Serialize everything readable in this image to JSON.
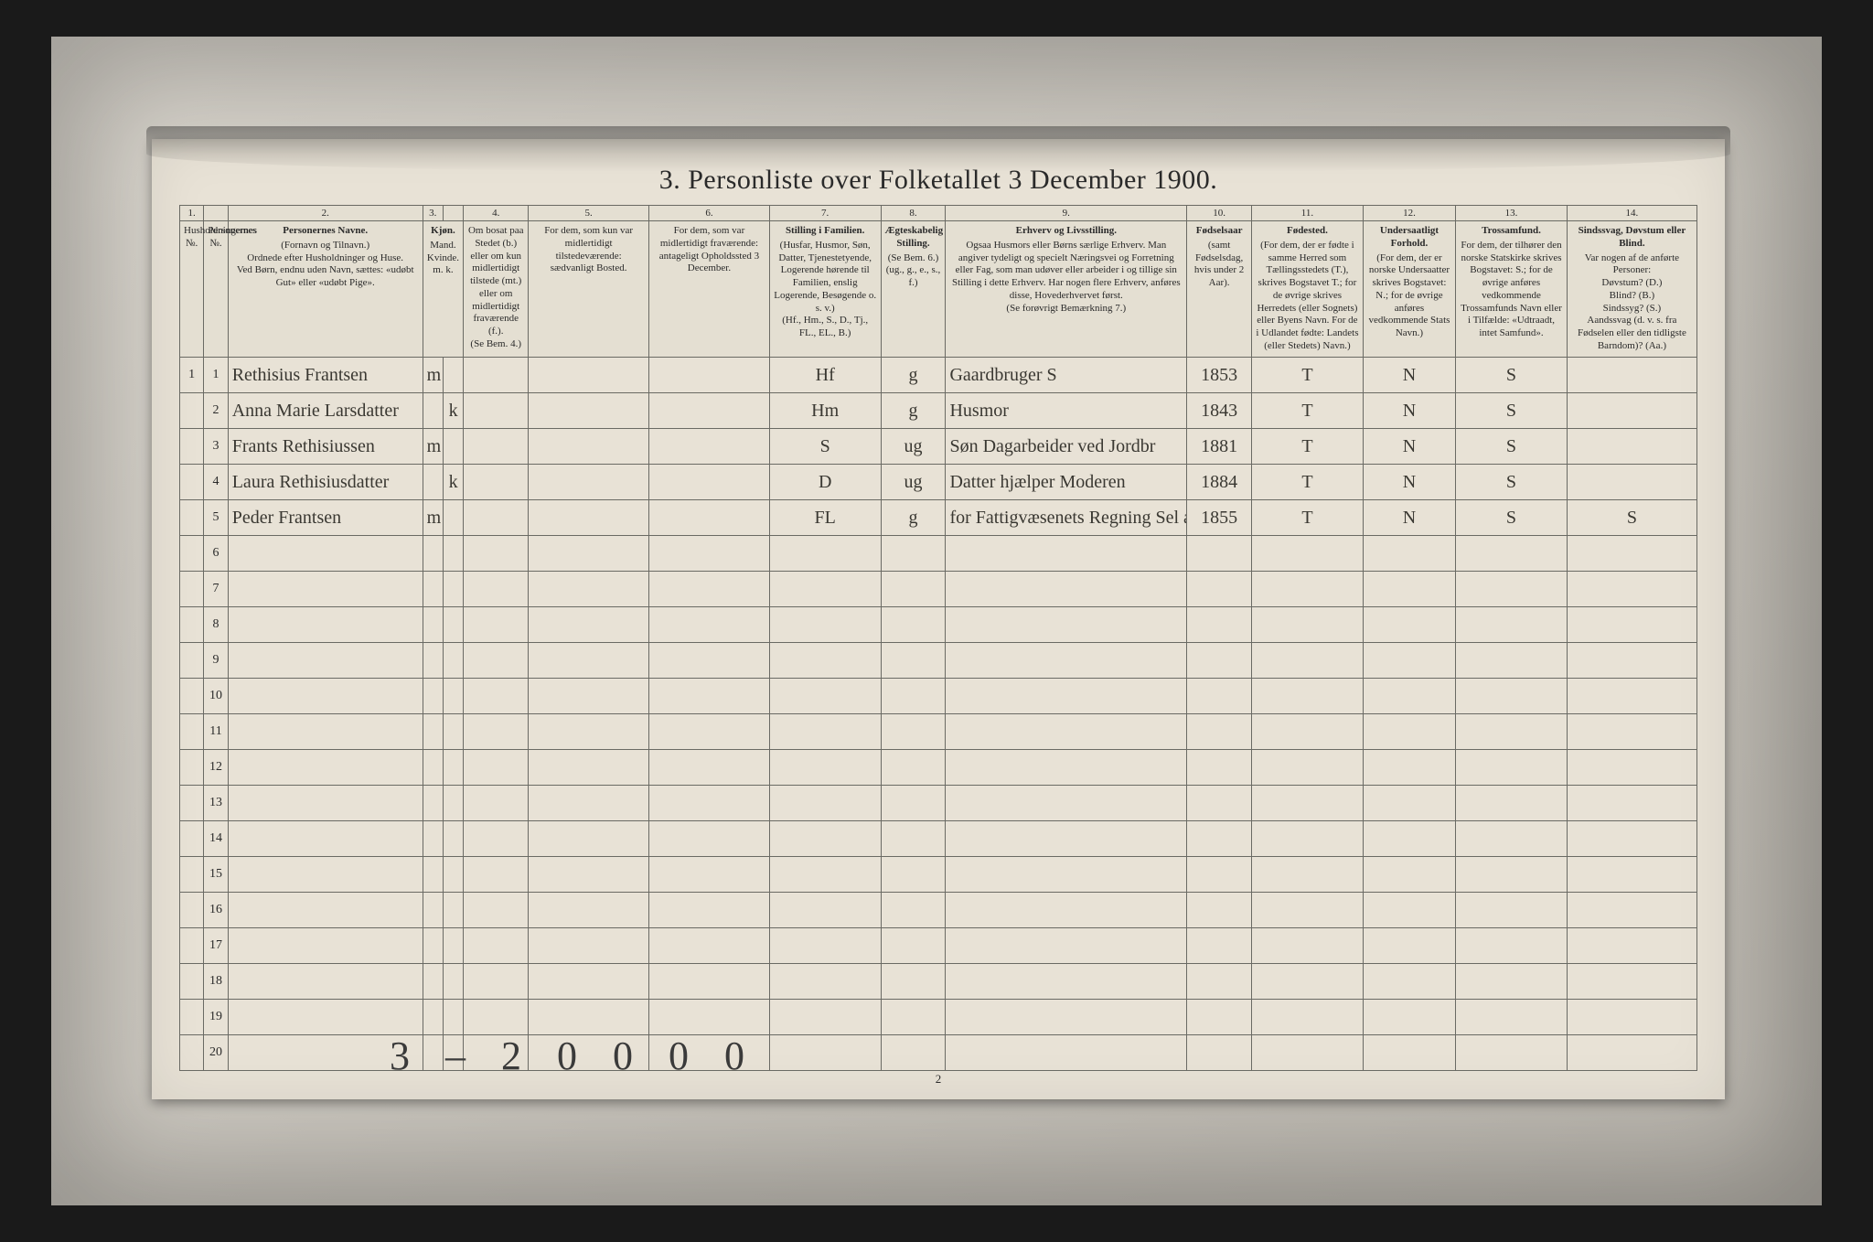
{
  "title": "3.  Personliste over Folketallet 3 December 1900.",
  "colnums": [
    "1.",
    "",
    "2.",
    "3.",
    "",
    "4.",
    "5.",
    "6.",
    "7.",
    "8.",
    "9.",
    "10.",
    "11.",
    "12.",
    "13.",
    "14."
  ],
  "headers": {
    "c1": {
      "t": "",
      "d": "Husholdningernes №."
    },
    "c2": {
      "t": "",
      "d": "Personernes №."
    },
    "c3": {
      "t": "Personernes Navne.",
      "d": "(Fornavn og Tilnavn.)\nOrdnede efter Husholdninger og Huse.\nVed Børn, endnu uden Navn, sættes: «udøbt Gut» eller «udøbt Pige»."
    },
    "c4": {
      "t": "Kjøn.",
      "d": "Mand.  Kvinde.\nm.   k."
    },
    "c5": {
      "t": "",
      "d": "Om bosat paa Stedet (b.) eller om kun midlertidigt tilstede (mt.) eller om midlertidigt fraværende (f.).\n(Se Bem. 4.)"
    },
    "c6": {
      "t": "",
      "d": "For dem, som kun var midlertidigt tilstedeværende:\nsædvanligt Bosted."
    },
    "c7": {
      "t": "",
      "d": "For dem, som var midlertidigt fraværende:\nantageligt Opholdssted 3 December."
    },
    "c8": {
      "t": "Stilling i Familien.",
      "d": "(Husfar, Husmor, Søn, Datter, Tjenestetyende, Logerende hørende til Familien, enslig Logerende, Besøgende o. s. v.)\n(Hf., Hm., S., D., Tj., FL., EL., B.)"
    },
    "c9": {
      "t": "Ægteskabelig Stilling.",
      "d": "(Se Bem. 6.)\n(ug., g., e., s., f.)"
    },
    "c10": {
      "t": "Erhverv og Livsstilling.",
      "d": "Ogsaa Husmors eller Børns særlige Erhverv. Man angiver tydeligt og specielt Næringsvei og Forretning eller Fag, som man udøver eller arbeider i og tillige sin Stilling i dette Erhverv. Har nogen flere Erhverv, anføres disse, Hovederhvervet først.\n(Se forøvrigt Bemærkning 7.)"
    },
    "c11": {
      "t": "Fødselsaar",
      "d": "(samt Fødselsdag, hvis under 2 Aar)."
    },
    "c12": {
      "t": "Fødested.",
      "d": "(For dem, der er fødte i samme Herred som Tællingsstedets (T.), skrives Bogstavet T.; for de øvrige skrives Herredets (eller Sognets) eller Byens Navn. For de i Udlandet fødte: Landets (eller Stedets) Navn.)"
    },
    "c13": {
      "t": "Undersaatligt Forhold.",
      "d": "(For dem, der er norske Undersaatter skrives Bogstavet: N.; for de øvrige anføres vedkommende Stats Navn.)"
    },
    "c14": {
      "t": "Trossamfund.",
      "d": "For dem, der tilhører den norske Statskirke skrives Bogstavet: S.; for de øvrige anføres vedkommende Trossamfunds Navn eller i Tilfælde: «Udtraadt, intet Samfund»."
    },
    "c15": {
      "t": "Sindssvag, Døvstum eller Blind.",
      "d": "Var nogen af de anførte Personer:\nDøvstum? (D.)\nBlind? (B.)\nSindssyg? (S.)\nAandssvag (d. v. s. fra Fødselen eller den tidligste Barndom)? (Aa.)"
    }
  },
  "rows": [
    {
      "hh": "1",
      "p": "1",
      "name": "Rethisius Frantsen",
      "m": "m",
      "k": "",
      "b": "",
      "res": "",
      "abs": "",
      "fam": "Hf",
      "ms": "g",
      "occ": "Gaardbruger   S",
      "yr": "1853",
      "bp": "T",
      "nat": "N",
      "rel": "S",
      "dis": ""
    },
    {
      "hh": "",
      "p": "2",
      "name": "Anna Marie Larsdatter",
      "m": "",
      "k": "k",
      "b": "",
      "res": "",
      "abs": "",
      "fam": "Hm",
      "ms": "g",
      "occ": "Husmor",
      "yr": "1843",
      "bp": "T",
      "nat": "N",
      "rel": "S",
      "dis": ""
    },
    {
      "hh": "",
      "p": "3",
      "name": "Frants Rethisiussen",
      "m": "m",
      "k": "",
      "b": "",
      "res": "",
      "abs": "",
      "fam": "S",
      "ms": "ug",
      "occ": "Søn Dagarbeider ved Jordbr",
      "yr": "1881",
      "bp": "T",
      "nat": "N",
      "rel": "S",
      "dis": ""
    },
    {
      "hh": "",
      "p": "4",
      "name": "Laura Rethisiusdatter",
      "m": "",
      "k": "k",
      "b": "",
      "res": "",
      "abs": "",
      "fam": "D",
      "ms": "ug",
      "occ": "Datter hjælper Moderen",
      "yr": "1884",
      "bp": "T",
      "nat": "N",
      "rel": "S",
      "dis": ""
    },
    {
      "hh": "",
      "p": "5",
      "name": "Peder Frantsen",
      "m": "m",
      "k": "",
      "b": "",
      "res": "",
      "abs": "",
      "fam": "FL",
      "ms": "g",
      "occ": "for Fattigvæsenets Regning  Sel a",
      "yr": "1855",
      "bp": "T",
      "nat": "N",
      "rel": "S",
      "dis": "S"
    }
  ],
  "blank_rows": 15,
  "footer_note": "3 – 2 0 0 0 0",
  "page_num": "2",
  "colors": {
    "page_bg": "#1a1a1a",
    "frame_bg": "#c8c4bc",
    "paper_bg": "#e8e2d6",
    "rule": "#6a6a64",
    "ink": "#2a2a2a",
    "script": "#3a3832"
  }
}
